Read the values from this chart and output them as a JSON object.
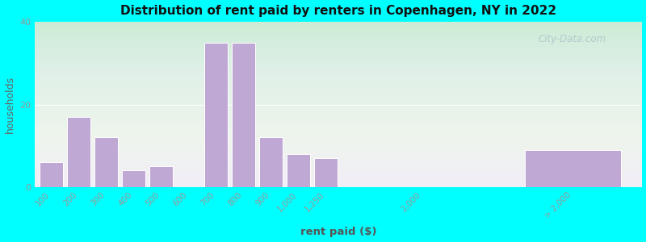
{
  "title": "Distribution of rent paid by renters in Copenhagen, NY in 2022",
  "xlabel": "rent paid ($)",
  "ylabel": "households",
  "background_outer": "#00FFFF",
  "bar_color": "#C0A8D5",
  "bar_edge_color": "#FFFFFF",
  "categories": [
    "100",
    "200",
    "300",
    "400",
    "500",
    "600",
    "700",
    "800",
    "900",
    "1,000",
    "1,250",
    "2,000",
    "> 2,000"
  ],
  "values": [
    6,
    17,
    12,
    4,
    5,
    0,
    35,
    35,
    12,
    8,
    7,
    0,
    9
  ],
  "ylim": [
    0,
    40
  ],
  "yticks": [
    0,
    20,
    40
  ],
  "watermark": "City-Data.com",
  "grad_top": "#c8ecd0",
  "grad_mid": "#e8f5e2",
  "grad_bottom": "#f0edf8"
}
